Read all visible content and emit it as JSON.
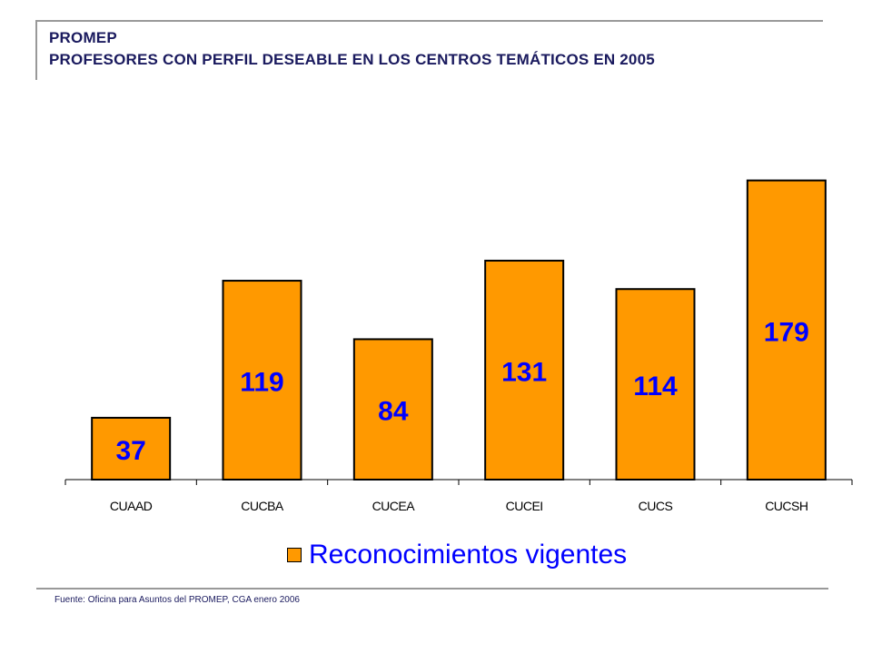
{
  "header": {
    "line1": "PROMEP",
    "line2": "PROFESORES CON PERFIL DESEABLE EN LOS CENTROS TEMÁTICOS EN 2005"
  },
  "colors": {
    "bar": "#ff9900",
    "bar_border": "#000000",
    "value_label": "#0000ff",
    "title": "#1a1a5e"
  },
  "chart_data": {
    "type": "bar",
    "categories": [
      "CUAAD",
      "CUCBA",
      "CUCEA",
      "CUCEI",
      "CUCS",
      "CUCSH"
    ],
    "series": [
      {
        "name": "Reconocimientos vigentes",
        "values": [
          37,
          119,
          84,
          131,
          114,
          179
        ]
      }
    ],
    "ylim": [
      0,
      200
    ],
    "grid": false,
    "legend": "bottom"
  },
  "legend": {
    "label": "Reconocimientos vigentes"
  },
  "footer": {
    "source": "Fuente: Oficina para Asuntos del PROMEP,  CGA enero 2006"
  }
}
